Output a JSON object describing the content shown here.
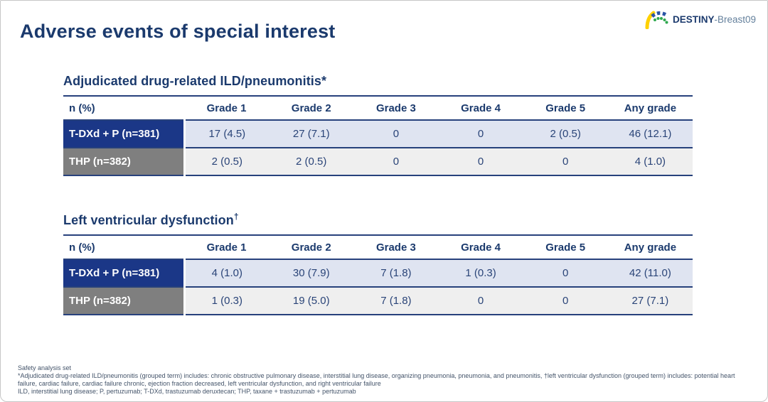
{
  "slide": {
    "title": "Adverse events of special interest",
    "logo": {
      "brand_bold": "DESTINY",
      "brand_rest": "-Breast09"
    }
  },
  "colors": {
    "navy_text": "#1b3a6d",
    "row_blue_bg": "#1b3787",
    "row_gray_bg": "#7f7f7f",
    "cell_light_blue": "#dfe4f1",
    "cell_light_gray": "#efefef",
    "rule_navy": "#27417c",
    "logo_yellow": "#ffd100",
    "logo_blue": "#2b55a5",
    "logo_green": "#2fa84f"
  },
  "chart_data": [
    {
      "type": "table",
      "title": "Adjudicated drug-related ILD/pneumonitis*",
      "columns": [
        "n (%)",
        "Grade 1",
        "Grade 2",
        "Grade 3",
        "Grade 4",
        "Grade 5",
        "Any grade"
      ],
      "rows": [
        {
          "label": "T-DXd + P (n=381)",
          "values": [
            "17 (4.5)",
            "27 (7.1)",
            "0",
            "0",
            "2 (0.5)",
            "46 (12.1)"
          ]
        },
        {
          "label": "THP (n=382)",
          "values": [
            "2 (0.5)",
            "2 (0.5)",
            "0",
            "0",
            "0",
            "4 (1.0)"
          ]
        }
      ]
    },
    {
      "type": "table",
      "title": "Left ventricular dysfunction",
      "title_sup": "†",
      "columns": [
        "n (%)",
        "Grade 1",
        "Grade 2",
        "Grade 3",
        "Grade 4",
        "Grade 5",
        "Any grade"
      ],
      "rows": [
        {
          "label": "T-DXd + P (n=381)",
          "values": [
            "4 (1.0)",
            "30 (7.9)",
            "7 (1.8)",
            "1 (0.3)",
            "0",
            "42 (11.0)"
          ]
        },
        {
          "label": "THP (n=382)",
          "values": [
            "1 (0.3)",
            "19 (5.0)",
            "7 (1.8)",
            "0",
            "0",
            "27 (7.1)"
          ]
        }
      ]
    }
  ],
  "footnotes": {
    "lines": [
      "Safety analysis set",
      "*Adjudicated drug-related ILD/pneumonitis (grouped term) includes: chronic obstructive pulmonary disease, interstitial lung disease, organizing pneumonia, pneumonia, and pneumonitis, †left ventricular dysfunction (grouped term) includes: potential heart",
      "failure, cardiac failure, cardiac failure chronic, ejection fraction decreased, left ventricular dysfunction, and right ventricular failure",
      "ILD, interstitial lung disease; P, pertuzumab; T-DXd, trastuzumab deruxtecan; THP, taxane + trastuzumab + pertuzumab"
    ]
  }
}
